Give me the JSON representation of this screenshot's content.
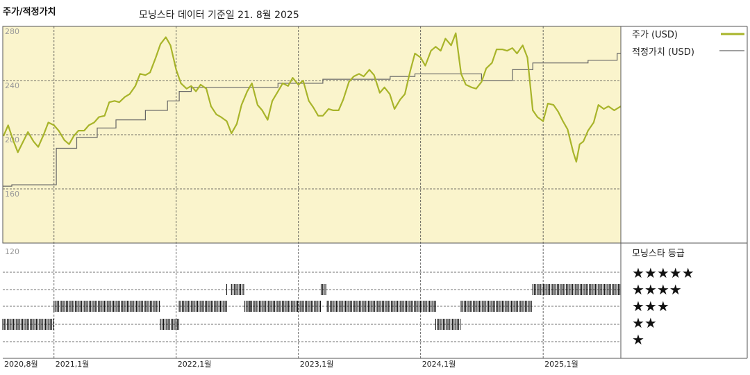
{
  "chart_title": "주가/적정가치",
  "subtitle": "모닝스타 데이터 기준일 21. 8월 2025",
  "colors": {
    "price": "#a8b42a",
    "fair_value": "#666666",
    "upper_bg": "#faf4cc",
    "rating_bar": "#111111"
  },
  "chart_data": {
    "type": "line",
    "y_ticks": [
      "280",
      "240",
      "200",
      "160",
      "120"
    ],
    "ylim": [
      120,
      280
    ],
    "x_ticks": [
      "2020,8월",
      "2021,1월",
      "2022,1월",
      "2023,1월",
      "2024,1월",
      "2025,1월"
    ],
    "x_tick_dates": [
      "2020-08",
      "2021-01",
      "2022-01",
      "2023-01",
      "2024-01",
      "2025-01"
    ],
    "xlim": [
      "2020-08-01",
      "2025-08-21"
    ],
    "series": [
      {
        "name": "주가 (USD)",
        "points": [
          [
            "2020-08-03",
            199
          ],
          [
            "2020-08-17",
            207
          ],
          [
            "2020-09-01",
            196
          ],
          [
            "2020-09-15",
            187
          ],
          [
            "2020-10-01",
            195
          ],
          [
            "2020-10-15",
            202
          ],
          [
            "2020-11-01",
            195
          ],
          [
            "2020-11-15",
            191
          ],
          [
            "2020-12-01",
            200
          ],
          [
            "2020-12-15",
            209
          ],
          [
            "2021-01-01",
            207
          ],
          [
            "2021-01-15",
            203
          ],
          [
            "2021-02-01",
            196
          ],
          [
            "2021-02-15",
            193
          ],
          [
            "2021-03-01",
            199
          ],
          [
            "2021-03-15",
            203
          ],
          [
            "2021-04-01",
            203
          ],
          [
            "2021-04-15",
            207
          ],
          [
            "2021-05-01",
            209
          ],
          [
            "2021-05-15",
            213
          ],
          [
            "2021-06-01",
            214
          ],
          [
            "2021-06-15",
            224
          ],
          [
            "2021-07-01",
            225
          ],
          [
            "2021-07-15",
            224
          ],
          [
            "2021-08-01",
            228
          ],
          [
            "2021-08-15",
            230
          ],
          [
            "2021-09-01",
            236
          ],
          [
            "2021-09-15",
            245
          ],
          [
            "2021-10-01",
            244
          ],
          [
            "2021-10-15",
            246
          ],
          [
            "2021-11-01",
            257
          ],
          [
            "2021-11-15",
            267
          ],
          [
            "2021-12-01",
            272
          ],
          [
            "2021-12-15",
            266
          ],
          [
            "2022-01-01",
            248
          ],
          [
            "2022-01-15",
            238
          ],
          [
            "2022-02-01",
            234
          ],
          [
            "2022-02-15",
            236
          ],
          [
            "2022-03-01",
            232
          ],
          [
            "2022-03-15",
            237
          ],
          [
            "2022-04-01",
            234
          ],
          [
            "2022-04-15",
            221
          ],
          [
            "2022-05-01",
            215
          ],
          [
            "2022-05-15",
            213
          ],
          [
            "2022-06-01",
            210
          ],
          [
            "2022-06-15",
            201
          ],
          [
            "2022-07-01",
            208
          ],
          [
            "2022-07-15",
            222
          ],
          [
            "2022-08-01",
            232
          ],
          [
            "2022-08-15",
            238
          ],
          [
            "2022-09-01",
            222
          ],
          [
            "2022-09-15",
            218
          ],
          [
            "2022-10-01",
            211
          ],
          [
            "2022-10-15",
            225
          ],
          [
            "2022-11-01",
            232
          ],
          [
            "2022-11-15",
            238
          ],
          [
            "2022-12-01",
            236
          ],
          [
            "2022-12-15",
            242
          ],
          [
            "2023-01-01",
            237
          ],
          [
            "2023-01-15",
            240
          ],
          [
            "2023-02-01",
            225
          ],
          [
            "2023-02-15",
            220
          ],
          [
            "2023-03-01",
            214
          ],
          [
            "2023-03-15",
            214
          ],
          [
            "2023-04-01",
            219
          ],
          [
            "2023-04-15",
            218
          ],
          [
            "2023-05-01",
            218
          ],
          [
            "2023-05-15",
            226
          ],
          [
            "2023-06-01",
            239
          ],
          [
            "2023-06-15",
            243
          ],
          [
            "2023-07-01",
            245
          ],
          [
            "2023-07-15",
            243
          ],
          [
            "2023-08-01",
            248
          ],
          [
            "2023-08-15",
            244
          ],
          [
            "2023-09-01",
            231
          ],
          [
            "2023-09-15",
            235
          ],
          [
            "2023-10-01",
            230
          ],
          [
            "2023-10-15",
            219
          ],
          [
            "2023-11-01",
            226
          ],
          [
            "2023-11-15",
            230
          ],
          [
            "2023-12-01",
            247
          ],
          [
            "2023-12-15",
            260
          ],
          [
            "2024-01-01",
            257
          ],
          [
            "2024-01-15",
            251
          ],
          [
            "2024-02-01",
            262
          ],
          [
            "2024-02-15",
            265
          ],
          [
            "2024-03-01",
            262
          ],
          [
            "2024-03-15",
            271
          ],
          [
            "2024-04-01",
            266
          ],
          [
            "2024-04-15",
            275
          ],
          [
            "2024-05-01",
            245
          ],
          [
            "2024-05-15",
            237
          ],
          [
            "2024-06-01",
            235
          ],
          [
            "2024-06-15",
            234
          ],
          [
            "2024-07-01",
            239
          ],
          [
            "2024-07-15",
            249
          ],
          [
            "2024-08-01",
            253
          ],
          [
            "2024-08-15",
            263
          ],
          [
            "2024-09-01",
            263
          ],
          [
            "2024-09-15",
            262
          ],
          [
            "2024-10-01",
            264
          ],
          [
            "2024-10-15",
            260
          ],
          [
            "2024-11-01",
            266
          ],
          [
            "2024-11-15",
            257
          ],
          [
            "2024-12-01",
            218
          ],
          [
            "2024-12-15",
            213
          ],
          [
            "2025-01-01",
            210
          ],
          [
            "2025-01-15",
            223
          ],
          [
            "2025-02-01",
            222
          ],
          [
            "2025-02-15",
            217
          ],
          [
            "2025-03-01",
            210
          ],
          [
            "2025-03-15",
            204
          ],
          [
            "2025-04-01",
            187
          ],
          [
            "2025-04-10",
            180
          ],
          [
            "2025-04-20",
            193
          ],
          [
            "2025-05-01",
            195
          ],
          [
            "2025-05-15",
            203
          ],
          [
            "2025-06-01",
            209
          ],
          [
            "2025-06-15",
            222
          ],
          [
            "2025-07-01",
            219
          ],
          [
            "2025-07-15",
            221
          ],
          [
            "2025-08-01",
            218
          ],
          [
            "2025-08-21",
            221
          ]
        ]
      },
      {
        "name": "적정가치 (USD)",
        "points": [
          [
            "2020-08-01",
            162
          ],
          [
            "2020-08-28",
            162
          ],
          [
            "2020-08-28",
            163
          ],
          [
            "2021-01-08",
            163
          ],
          [
            "2021-01-08",
            190
          ],
          [
            "2021-03-10",
            190
          ],
          [
            "2021-03-10",
            198
          ],
          [
            "2021-05-10",
            198
          ],
          [
            "2021-05-10",
            205
          ],
          [
            "2021-07-05",
            205
          ],
          [
            "2021-07-05",
            211
          ],
          [
            "2021-10-01",
            211
          ],
          [
            "2021-10-01",
            218
          ],
          [
            "2021-12-06",
            218
          ],
          [
            "2021-12-06",
            225
          ],
          [
            "2022-01-10",
            225
          ],
          [
            "2022-01-10",
            232
          ],
          [
            "2022-02-15",
            232
          ],
          [
            "2022-02-15",
            235
          ],
          [
            "2022-11-01",
            235
          ],
          [
            "2022-11-01",
            238
          ],
          [
            "2023-03-15",
            238
          ],
          [
            "2023-03-15",
            241
          ],
          [
            "2023-10-02",
            241
          ],
          [
            "2023-10-02",
            243
          ],
          [
            "2023-12-15",
            243
          ],
          [
            "2023-12-15",
            245
          ],
          [
            "2024-07-01",
            245
          ],
          [
            "2024-07-01",
            240
          ],
          [
            "2024-10-01",
            240
          ],
          [
            "2024-10-01",
            248
          ],
          [
            "2024-12-01",
            248
          ],
          [
            "2024-12-01",
            253
          ],
          [
            "2025-05-15",
            253
          ],
          [
            "2025-05-15",
            255
          ],
          [
            "2025-08-10",
            255
          ],
          [
            "2025-08-10",
            260
          ],
          [
            "2025-08-21",
            260
          ]
        ]
      }
    ],
    "star_rating": {
      "label": "모닝스타 등급",
      "levels": [
        "★★★★★",
        "★★★★",
        "★★★",
        "★★",
        "★"
      ],
      "periods": [
        {
          "start": "2020-08-01",
          "end": "2020-12-31",
          "stars": 2
        },
        {
          "start": "2021-01-01",
          "end": "2021-11-15",
          "stars": 3
        },
        {
          "start": "2021-11-15",
          "end": "2022-01-10",
          "stars": 2
        },
        {
          "start": "2022-01-10",
          "end": "2022-06-01",
          "stars": 3
        },
        {
          "start": "2022-06-01",
          "end": "2022-06-05",
          "stars": 4
        },
        {
          "start": "2022-06-15",
          "end": "2022-07-25",
          "stars": 4
        },
        {
          "start": "2022-07-25",
          "end": "2022-08-10",
          "stars": 3
        },
        {
          "start": "2022-08-10",
          "end": "2023-03-10",
          "stars": 3
        },
        {
          "start": "2023-03-10",
          "end": "2023-03-28",
          "stars": 4
        },
        {
          "start": "2023-03-28",
          "end": "2024-02-15",
          "stars": 3
        },
        {
          "start": "2024-02-15",
          "end": "2024-05-01",
          "stars": 2
        },
        {
          "start": "2024-05-01",
          "end": "2024-12-01",
          "stars": 3
        },
        {
          "start": "2024-12-01",
          "end": "2025-08-21",
          "stars": 4
        }
      ]
    }
  }
}
